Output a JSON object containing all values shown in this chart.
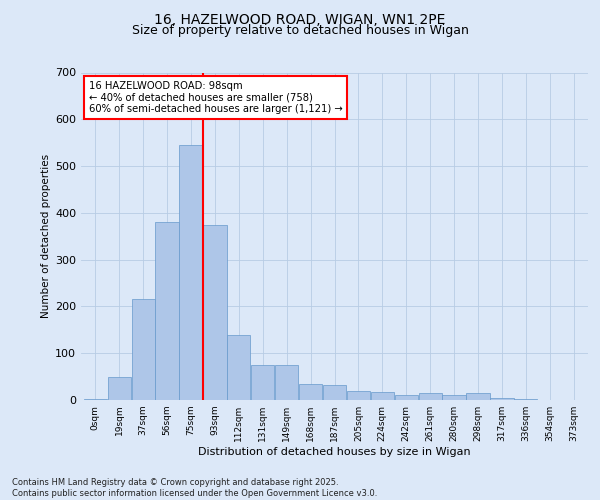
{
  "title_line1": "16, HAZELWOOD ROAD, WIGAN, WN1 2PE",
  "title_line2": "Size of property relative to detached houses in Wigan",
  "xlabel": "Distribution of detached houses by size in Wigan",
  "ylabel": "Number of detached properties",
  "bar_labels": [
    "0sqm",
    "19sqm",
    "37sqm",
    "56sqm",
    "75sqm",
    "93sqm",
    "112sqm",
    "131sqm",
    "149sqm",
    "168sqm",
    "187sqm",
    "205sqm",
    "224sqm",
    "242sqm",
    "261sqm",
    "280sqm",
    "298sqm",
    "317sqm",
    "336sqm",
    "354sqm",
    "373sqm"
  ],
  "bar_values": [
    2,
    50,
    215,
    380,
    545,
    375,
    140,
    75,
    75,
    35,
    32,
    20,
    18,
    10,
    16,
    10,
    15,
    5,
    3,
    1,
    1
  ],
  "bar_color": "#aec6e8",
  "bar_edge_color": "#6699cc",
  "vline_x": 93,
  "annotation_text": "16 HAZELWOOD ROAD: 98sqm\n← 40% of detached houses are smaller (758)\n60% of semi-detached houses are larger (1,121) →",
  "annotation_box_color": "white",
  "annotation_box_edge_color": "red",
  "vline_color": "red",
  "ylim": [
    0,
    700
  ],
  "yticks": [
    0,
    100,
    200,
    300,
    400,
    500,
    600,
    700
  ],
  "footer_text": "Contains HM Land Registry data © Crown copyright and database right 2025.\nContains public sector information licensed under the Open Government Licence v3.0.",
  "bg_color": "#dce8f8",
  "plot_bg_color": "#dce8f8",
  "grid_color": "#b8cce4",
  "title_fontsize": 10,
  "subtitle_fontsize": 9,
  "bin_width": 18.5
}
